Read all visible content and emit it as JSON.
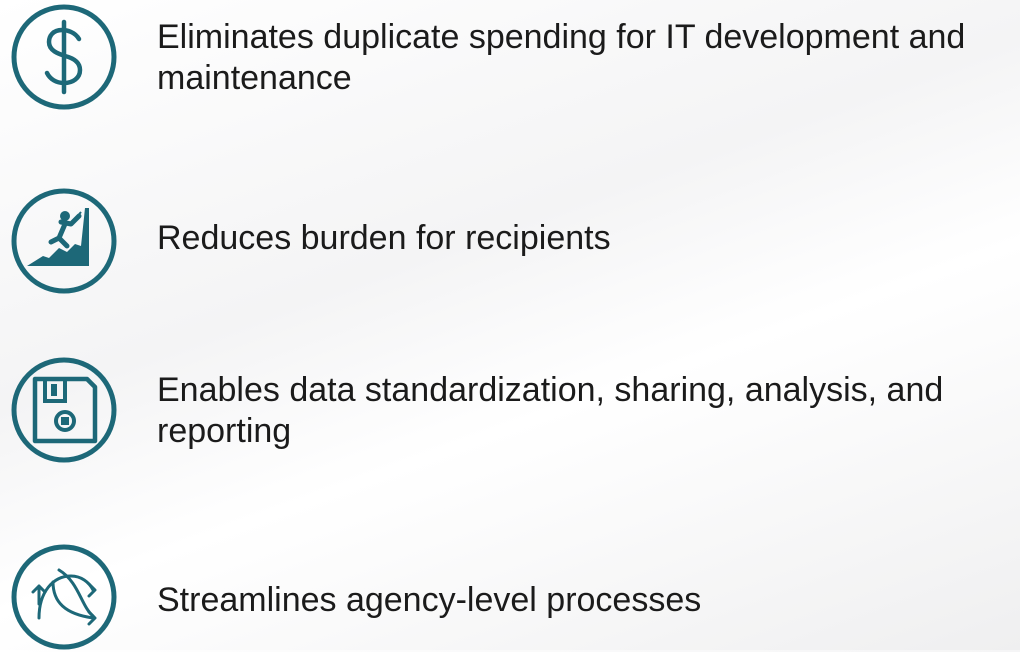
{
  "items": [
    {
      "text": "Eliminates duplicate spending for IT development and maintenance"
    },
    {
      "text": "Reduces burden for recipients"
    },
    {
      "text": "Enables data standardization, sharing, analysis, and reporting"
    },
    {
      "text": "Streamlines agency-level processes"
    }
  ]
}
